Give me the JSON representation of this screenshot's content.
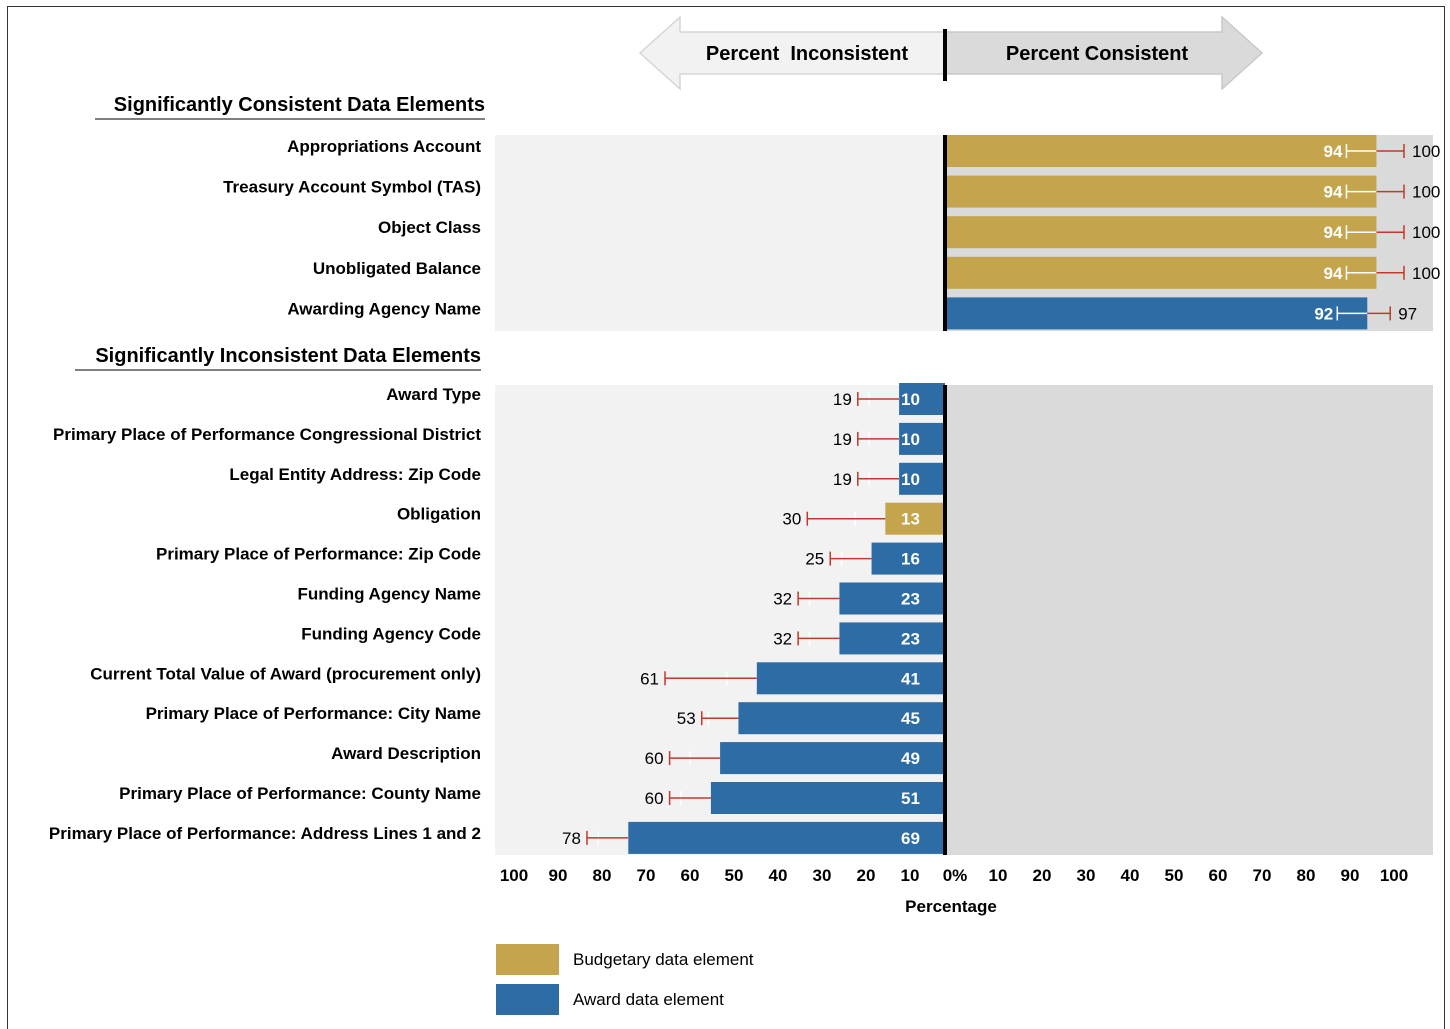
{
  "chart_data": {
    "type": "bar",
    "header": {
      "left": "Percent  Inconsistent",
      "right": "Percent Consistent"
    },
    "sections": [
      {
        "title": "Significantly Consistent Data Elements",
        "direction": "consistent",
        "items": [
          {
            "label": "Appropriations Account",
            "value": 94,
            "bound": 100,
            "type": "budgetary"
          },
          {
            "label": "Treasury Account Symbol (TAS)",
            "value": 94,
            "bound": 100,
            "type": "budgetary"
          },
          {
            "label": "Object Class",
            "value": 94,
            "bound": 100,
            "type": "budgetary"
          },
          {
            "label": "Unobligated Balance",
            "value": 94,
            "bound": 100,
            "type": "budgetary"
          },
          {
            "label": "Awarding Agency Name",
            "value": 92,
            "bound": 97,
            "type": "award"
          }
        ]
      },
      {
        "title": "Significantly Inconsistent Data Elements",
        "direction": "inconsistent",
        "items": [
          {
            "label": "Award Type",
            "value": 10,
            "bound": 19,
            "type": "award"
          },
          {
            "label": "Primary Place of Performance Congressional District",
            "value": 10,
            "bound": 19,
            "type": "award"
          },
          {
            "label": "Legal Entity Address: Zip Code",
            "value": 10,
            "bound": 19,
            "type": "award"
          },
          {
            "label": "Obligation",
            "value": 13,
            "bound": 30,
            "type": "budgetary"
          },
          {
            "label": "Primary Place of Performance: Zip Code",
            "value": 16,
            "bound": 25,
            "type": "award"
          },
          {
            "label": "Funding Agency Name",
            "value": 23,
            "bound": 32,
            "type": "award"
          },
          {
            "label": "Funding Agency Code",
            "value": 23,
            "bound": 32,
            "type": "award"
          },
          {
            "label": "Current Total Value of Award (procurement only)",
            "value": 41,
            "bound": 61,
            "type": "award"
          },
          {
            "label": "Primary Place of Performance: City Name",
            "value": 45,
            "bound": 53,
            "type": "award"
          },
          {
            "label": "Award Description",
            "value": 49,
            "bound": 60,
            "type": "award"
          },
          {
            "label": "Primary Place of Performance: County Name",
            "value": 51,
            "bound": 60,
            "type": "award"
          },
          {
            "label": "Primary Place of Performance: Address Lines 1 and 2",
            "value": 69,
            "bound": 78,
            "type": "award"
          }
        ]
      }
    ],
    "x_ticks_left": [
      "100",
      "90",
      "80",
      "70",
      "60",
      "50",
      "40",
      "30",
      "20",
      "10"
    ],
    "x_tick_center": "0%",
    "x_ticks_right": [
      "10",
      "20",
      "30",
      "40",
      "50",
      "60",
      "70",
      "80",
      "90",
      "100"
    ],
    "xlabel": "Percentage",
    "xlim": [
      -100,
      100
    ],
    "legend": [
      {
        "label": "Budgetary data element",
        "type": "budgetary"
      },
      {
        "label": "Award data element",
        "type": "award"
      }
    ],
    "colors": {
      "budgetary": "#c5a44e",
      "award": "#2e6ca5",
      "error_bar": "#c0392b",
      "panel_left": "#f2f2f2",
      "panel_right": "#dadada"
    }
  }
}
